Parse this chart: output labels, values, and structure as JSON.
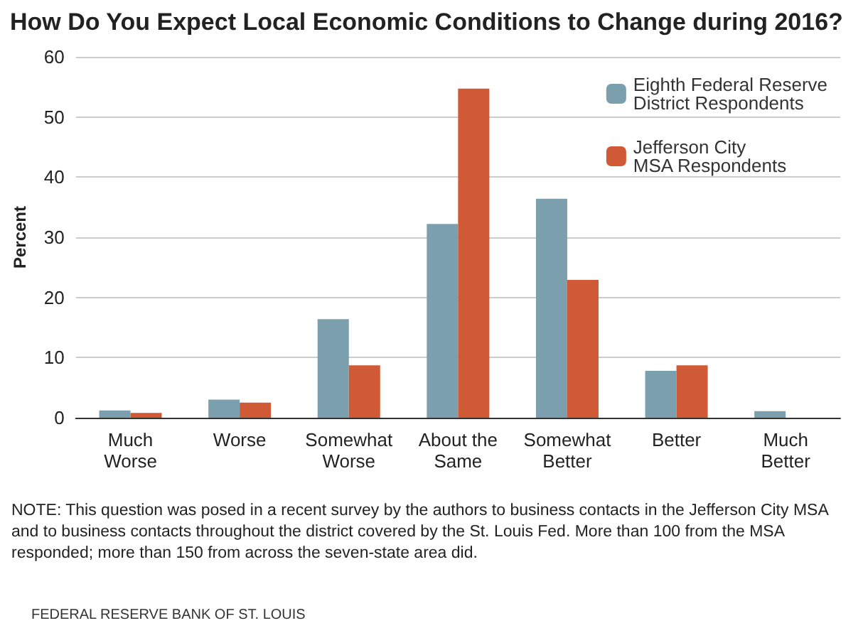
{
  "chart_data": {
    "type": "bar",
    "title": "How Do You Expect Local Economic Conditions to Change during 2016?",
    "ylabel": "Percent",
    "categories": [
      "Much\nWorse",
      "Worse",
      "Somewhat\nWorse",
      "About the\nSame",
      "Somewhat\nBetter",
      "Better",
      "Much\nBetter"
    ],
    "series": [
      {
        "name": "Eighth Federal Reserve\nDistrict Respondents",
        "color": "#7b9fad",
        "values": [
          1.2,
          3,
          16.4,
          32.2,
          36.4,
          7.8,
          1.1
        ]
      },
      {
        "name": "Jefferson City\nMSA Respondents",
        "color": "#cf5a35",
        "values": [
          0.8,
          2.5,
          8.7,
          54.7,
          22.9,
          8.7,
          0
        ]
      }
    ],
    "ylim": [
      0,
      60
    ],
    "yticks": [
      0,
      10,
      20,
      30,
      40,
      50,
      60
    ],
    "grid": "y",
    "legend": "top right",
    "annotations": [
      "NOTE: This question was posed in a recent survey by the authors to business contacts in the Jefferson City MSA and to business contacts throughout the district covered by the St. Louis Fed. More than 100 from the MSA responded; more than 150 from across the seven-state area did.",
      "FEDERAL RESERVE BANK OF ST. LOUIS"
    ]
  }
}
